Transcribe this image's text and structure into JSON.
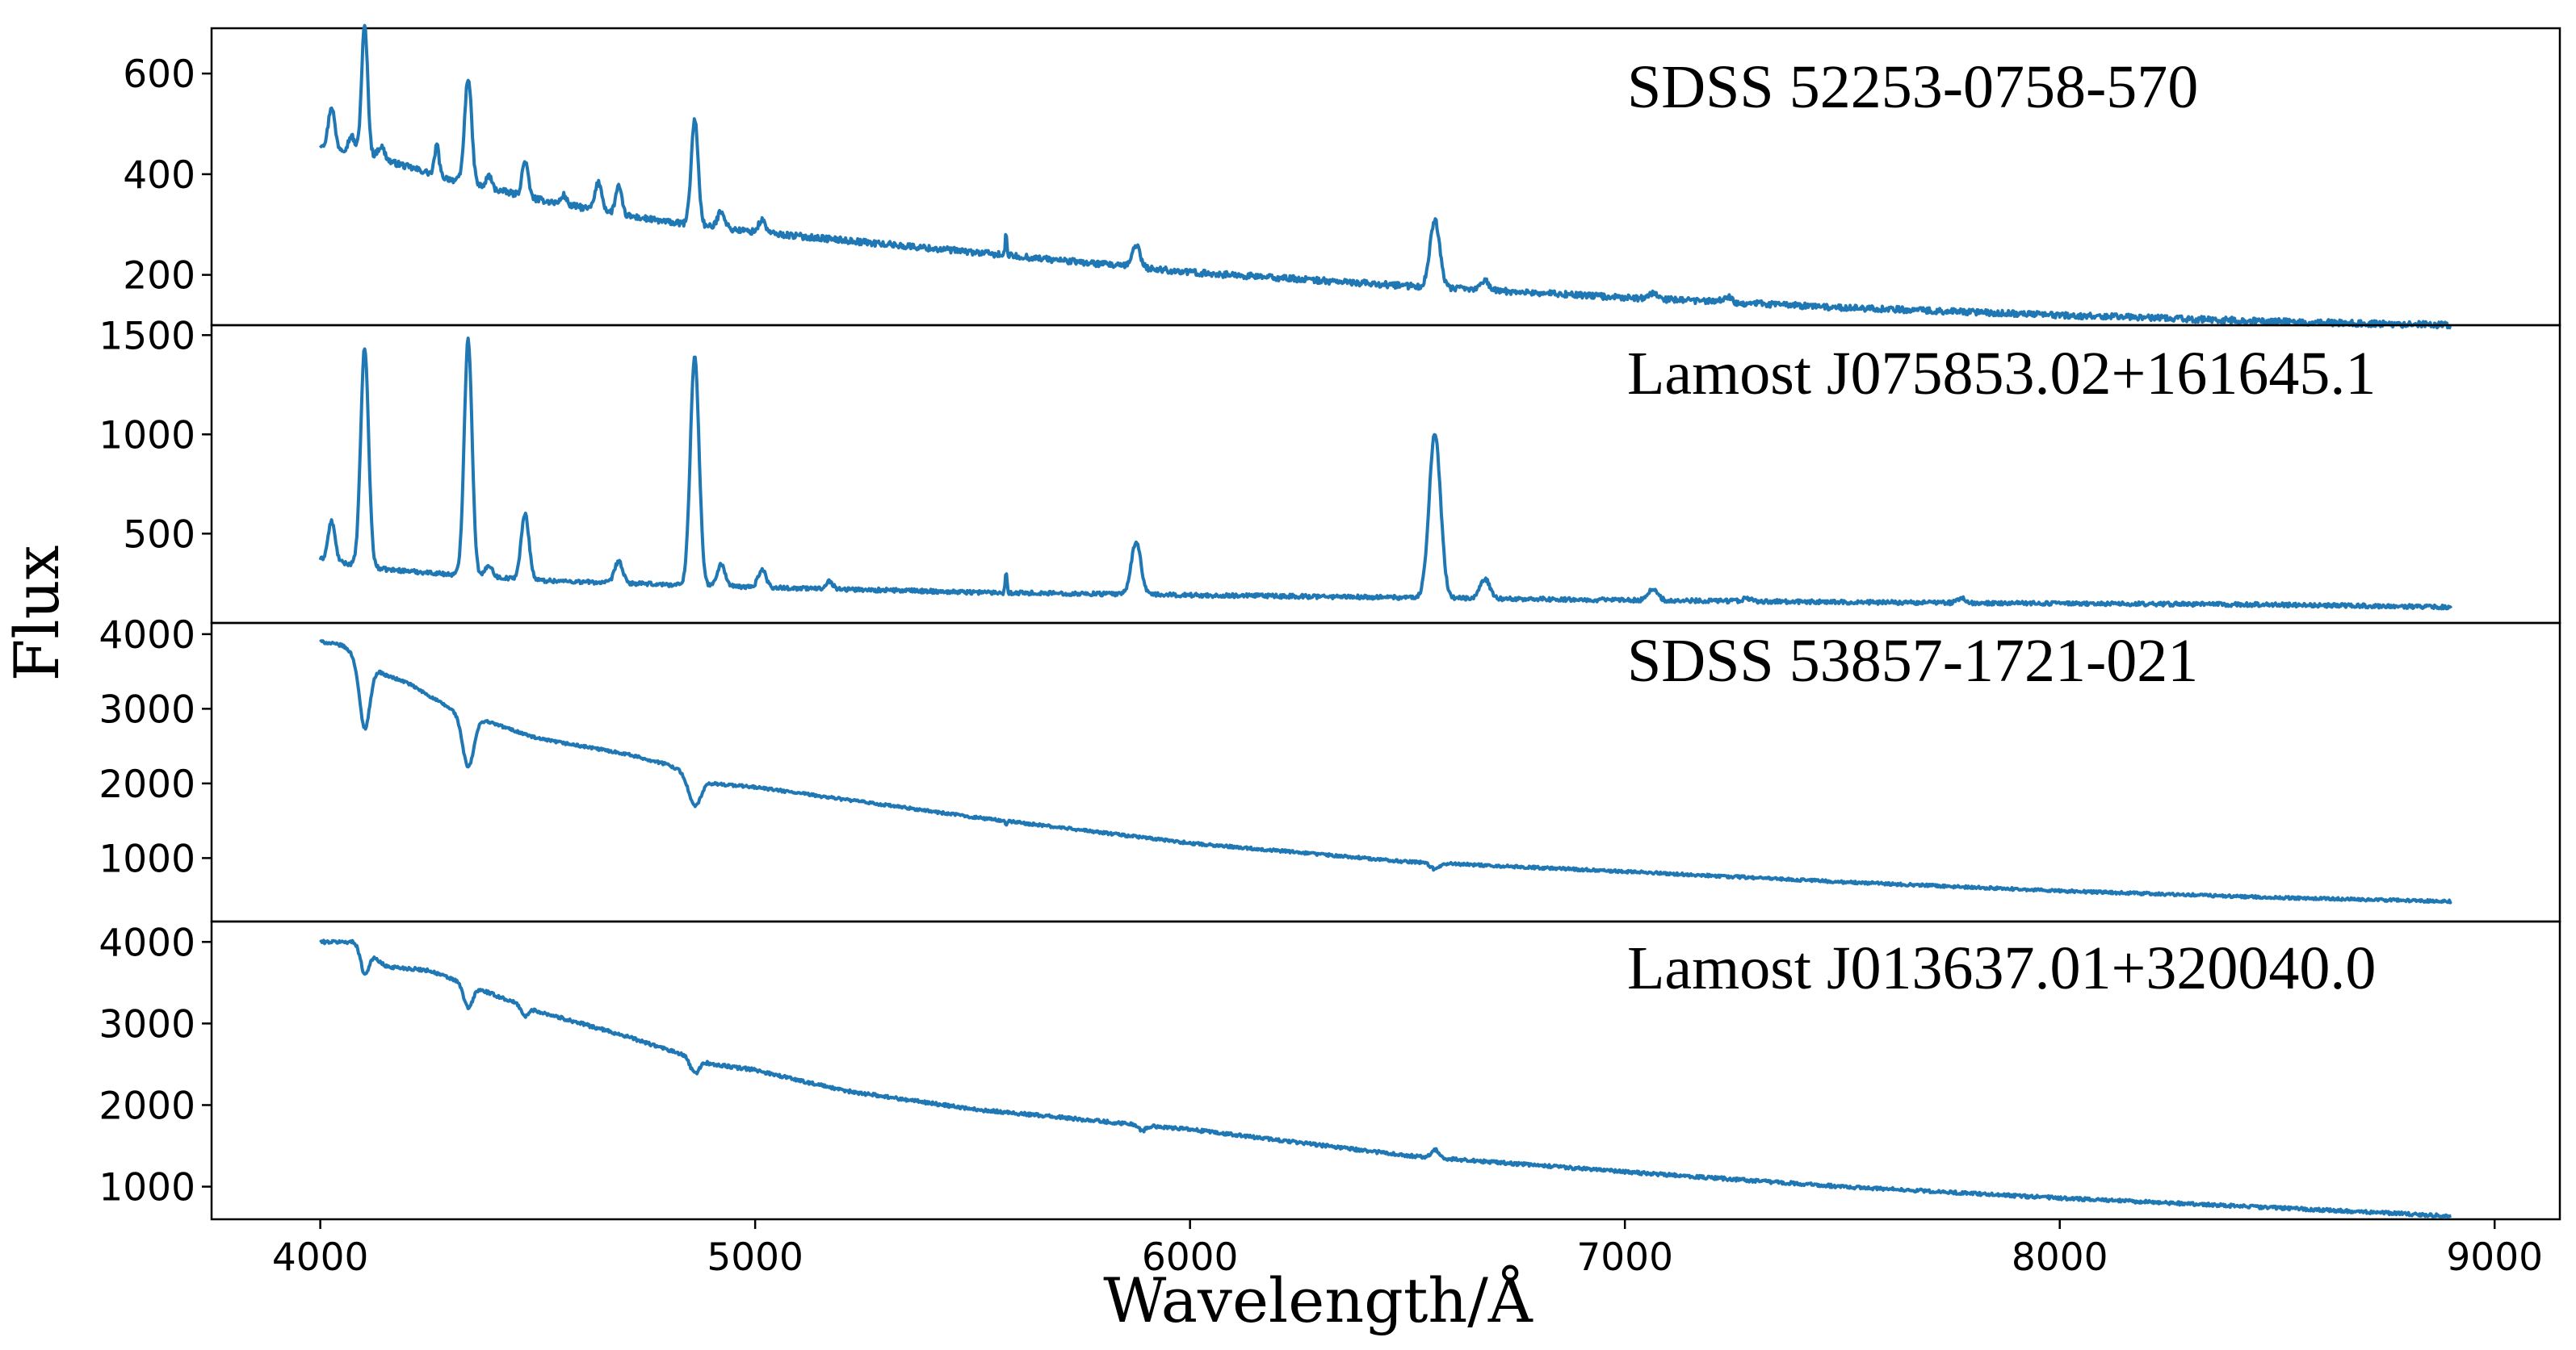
{
  "chart_data": {
    "type": "line",
    "xlabel": "Wavelength/Å",
    "ylabel": "Flux",
    "xlim": [
      3750,
      9150
    ],
    "x_ticks": [
      4000,
      5000,
      6000,
      7000,
      8000,
      9000
    ],
    "x_tick_labels": [
      "4000",
      "5000",
      "6000",
      "7000",
      "8000",
      "9000"
    ],
    "line_color": "#1f77b4",
    "panels": [
      {
        "name": "SDSS 52253-0758-570",
        "ylim": [
          100,
          690
        ],
        "y_ticks": [
          200,
          400,
          600
        ],
        "y_tick_labels": [
          "200",
          "400",
          "600"
        ],
        "wavelength_range": [
          4000,
          8900
        ],
        "continuum": [
          [
            4000,
            460
          ],
          [
            4100,
            440
          ],
          [
            4300,
            390
          ],
          [
            4500,
            350
          ],
          [
            4700,
            318
          ],
          [
            4800,
            305
          ],
          [
            5000,
            285
          ],
          [
            5500,
            245
          ],
          [
            6000,
            205
          ],
          [
            6500,
            178
          ],
          [
            7000,
            155
          ],
          [
            7500,
            135
          ],
          [
            8000,
            120
          ],
          [
            8500,
            107
          ],
          [
            8900,
            100
          ]
        ],
        "features": [
          {
            "center": 4026,
            "amplitude": 80,
            "width": 7
          },
          {
            "center": 4072,
            "amplitude": 30,
            "width": 7
          },
          {
            "center": 4102,
            "amplitude": 255,
            "width": 7
          },
          {
            "center": 4140,
            "amplitude": 25,
            "width": 8
          },
          {
            "center": 4268,
            "amplitude": 60,
            "width": 5
          },
          {
            "center": 4340,
            "amplitude": 210,
            "width": 8
          },
          {
            "center": 4388,
            "amplitude": 25,
            "width": 6
          },
          {
            "center": 4471,
            "amplitude": 70,
            "width": 7
          },
          {
            "center": 4560,
            "amplitude": 18,
            "width": 6
          },
          {
            "center": 4640,
            "amplitude": 55,
            "width": 8
          },
          {
            "center": 4686,
            "amplitude": 55,
            "width": 7
          },
          {
            "center": 4861,
            "amplitude": 210,
            "width": 8
          },
          {
            "center": 4922,
            "amplitude": 35,
            "width": 8
          },
          {
            "center": 5016,
            "amplitude": 25,
            "width": 8
          },
          {
            "center": 5577,
            "amplitude": 40,
            "width": 2
          },
          {
            "center": 5876,
            "amplitude": 45,
            "width": 9
          },
          {
            "center": 6563,
            "amplitude": 135,
            "width": 11
          },
          {
            "center": 6678,
            "amplitude": 20,
            "width": 9
          },
          {
            "center": 7065,
            "amplitude": 10,
            "width": 9
          },
          {
            "center": 7235,
            "amplitude": 12,
            "width": 9
          }
        ],
        "noise": 6
      },
      {
        "name": "Lamost J075853.02+161645.1",
        "ylim": [
          50,
          1550
        ],
        "y_ticks": [
          500,
          1000,
          1500
        ],
        "y_tick_labels": [
          "500",
          "1000",
          "1500"
        ],
        "wavelength_range": [
          4000,
          8900
        ],
        "continuum": [
          [
            4000,
            370
          ],
          [
            4150,
            320
          ],
          [
            4300,
            295
          ],
          [
            4500,
            265
          ],
          [
            4700,
            250
          ],
          [
            5000,
            230
          ],
          [
            5500,
            205
          ],
          [
            6000,
            190
          ],
          [
            6500,
            178
          ],
          [
            7000,
            165
          ],
          [
            7500,
            155
          ],
          [
            8000,
            148
          ],
          [
            8500,
            142
          ],
          [
            8900,
            130
          ]
        ],
        "features": [
          {
            "center": 4026,
            "amplitude": 200,
            "width": 8
          },
          {
            "center": 4102,
            "amplitude": 1100,
            "width": 9
          },
          {
            "center": 4340,
            "amplitude": 1190,
            "width": 9
          },
          {
            "center": 4388,
            "amplitude": 60,
            "width": 8
          },
          {
            "center": 4471,
            "amplitude": 330,
            "width": 9
          },
          {
            "center": 4686,
            "amplitude": 110,
            "width": 9
          },
          {
            "center": 4861,
            "amplitude": 1150,
            "width": 10
          },
          {
            "center": 4922,
            "amplitude": 110,
            "width": 9
          },
          {
            "center": 5016,
            "amplitude": 90,
            "width": 9
          },
          {
            "center": 5170,
            "amplitude": 40,
            "width": 8
          },
          {
            "center": 5577,
            "amplitude": 110,
            "width": 2
          },
          {
            "center": 5876,
            "amplitude": 265,
            "width": 11
          },
          {
            "center": 6563,
            "amplitude": 830,
            "width": 13
          },
          {
            "center": 6678,
            "amplitude": 100,
            "width": 11
          },
          {
            "center": 7065,
            "amplitude": 60,
            "width": 11
          },
          {
            "center": 7281,
            "amplitude": 15,
            "width": 9
          },
          {
            "center": 7775,
            "amplitude": 25,
            "width": 9
          }
        ],
        "noise": 10
      },
      {
        "name": "SDSS 53857-1721-021",
        "ylim": [
          150,
          4150
        ],
        "y_ticks": [
          1000,
          2000,
          3000,
          4000
        ],
        "y_tick_labels": [
          "1000",
          "2000",
          "3000",
          "4000"
        ],
        "wavelength_range": [
          4000,
          8900
        ],
        "continuum": [
          [
            4000,
            3900
          ],
          [
            4050,
            3850
          ],
          [
            4100,
            3650
          ],
          [
            4150,
            3450
          ],
          [
            4200,
            3350
          ],
          [
            4300,
            3000
          ],
          [
            4400,
            2800
          ],
          [
            4500,
            2600
          ],
          [
            4700,
            2400
          ],
          [
            4800,
            2250
          ],
          [
            4900,
            2000
          ],
          [
            5000,
            1950
          ],
          [
            5500,
            1550
          ],
          [
            6000,
            1200
          ],
          [
            6500,
            950
          ],
          [
            7000,
            820
          ],
          [
            7500,
            680
          ],
          [
            8000,
            560
          ],
          [
            8500,
            470
          ],
          [
            8900,
            420
          ]
        ],
        "features": [
          {
            "center": 4102,
            "amplitude": -900,
            "width": 12
          },
          {
            "center": 4340,
            "amplitude": -700,
            "width": 13
          },
          {
            "center": 4861,
            "amplitude": -400,
            "width": 14
          },
          {
            "center": 5577,
            "amplitude": -40,
            "width": 2
          },
          {
            "center": 6563,
            "amplitude": -80,
            "width": 10
          }
        ],
        "noise": 18
      },
      {
        "name": "Lamost J013637.01+320040.0",
        "ylim": [
          600,
          4250
        ],
        "y_ticks": [
          1000,
          2000,
          3000,
          4000
        ],
        "y_tick_labels": [
          "1000",
          "2000",
          "3000",
          "4000"
        ],
        "wavelength_range": [
          4000,
          8900
        ],
        "continuum": [
          [
            4000,
            4000
          ],
          [
            4080,
            4000
          ],
          [
            4150,
            3700
          ],
          [
            4250,
            3650
          ],
          [
            4350,
            3450
          ],
          [
            4500,
            3150
          ],
          [
            4700,
            2850
          ],
          [
            4900,
            2500
          ],
          [
            5000,
            2430
          ],
          [
            5200,
            2180
          ],
          [
            5500,
            1950
          ],
          [
            6000,
            1700
          ],
          [
            6500,
            1380
          ],
          [
            7000,
            1180
          ],
          [
            7500,
            1000
          ],
          [
            8000,
            860
          ],
          [
            8500,
            740
          ],
          [
            8900,
            640
          ]
        ],
        "features": [
          {
            "center": 4102,
            "amplitude": -300,
            "width": 9
          },
          {
            "center": 4340,
            "amplitude": -280,
            "width": 10
          },
          {
            "center": 4471,
            "amplitude": -120,
            "width": 8
          },
          {
            "center": 4861,
            "amplitude": -180,
            "width": 10
          },
          {
            "center": 5890,
            "amplitude": -70,
            "width": 8
          },
          {
            "center": 6563,
            "amplitude": 100,
            "width": 8
          }
        ],
        "noise": 20
      }
    ]
  }
}
